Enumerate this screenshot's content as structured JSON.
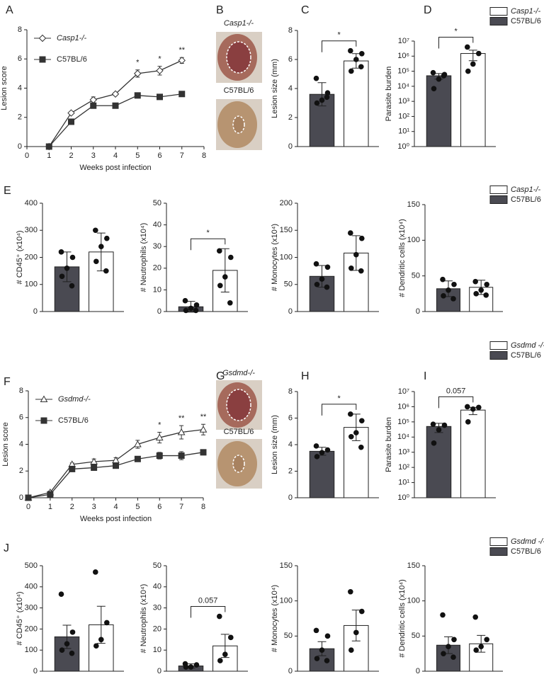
{
  "chart_data": [
    {
      "type": "line",
      "panel": "A",
      "xlabel": "Weeks post infection",
      "ylabel": "Lesion score",
      "x": [
        1,
        2,
        3,
        4,
        5,
        6,
        7
      ],
      "xlim": [
        0,
        8
      ],
      "xticks": [
        0,
        1,
        2,
        3,
        4,
        5,
        6,
        7,
        8
      ],
      "ylim": [
        0,
        8
      ],
      "yticks": [
        0,
        2,
        4,
        6,
        8
      ],
      "legend": "upper left",
      "stars": [
        null,
        null,
        null,
        null,
        "*",
        "*",
        "**"
      ],
      "series": [
        {
          "name": "Casp1-/-",
          "color": "#333333",
          "marker": "diamond",
          "filled": false,
          "values": [
            0,
            2.3,
            3.2,
            3.6,
            5.0,
            5.2,
            5.9
          ],
          "errors": [
            0,
            0.1,
            0.2,
            0.1,
            0.25,
            0.3,
            0.2
          ]
        },
        {
          "name": "C57BL/6",
          "color": "#333333",
          "marker": "square",
          "filled": true,
          "values": [
            0,
            1.7,
            2.8,
            2.8,
            3.5,
            3.4,
            3.6
          ],
          "errors": [
            0,
            0.05,
            0.05,
            0.05,
            0.05,
            0.05,
            0.05
          ]
        }
      ]
    },
    {
      "type": "image",
      "panel": "B",
      "labels": [
        "Casp1-/-",
        "C57BL/6"
      ]
    },
    {
      "type": "bar",
      "panel": "C",
      "ylabel": "Lesion size (mm)",
      "ylim": [
        0,
        8
      ],
      "yticks": [
        0,
        2,
        4,
        6,
        8
      ],
      "significance": "*",
      "series": [
        {
          "color": "#4a4a52",
          "value": 3.6,
          "error": 0.8,
          "points": [
            4.7,
            3.7,
            3.2,
            3.0,
            3.4
          ]
        },
        {
          "color": "#ffffff",
          "value": 5.9,
          "error": 0.5,
          "points": [
            6.6,
            6.4,
            6.0,
            5.2,
            5.5
          ]
        }
      ]
    },
    {
      "type": "bar",
      "panel": "D",
      "ylabel": "Parasite burden",
      "log_y": true,
      "ylim": [
        1,
        10000000
      ],
      "yticks": [
        {
          "value": 1,
          "label": "10⁰"
        },
        {
          "value": 10,
          "label": "10¹"
        },
        {
          "value": 100,
          "label": "10²"
        },
        {
          "value": 1000,
          "label": "10³"
        },
        {
          "value": 10000,
          "label": "10⁴"
        },
        {
          "value": 100000,
          "label": "10⁵"
        },
        {
          "value": 1000000,
          "label": "10⁶"
        },
        {
          "value": 10000000,
          "label": "10⁷"
        }
      ],
      "significance": "*",
      "legend": "upper right",
      "series": [
        {
          "name": "C57BL/6",
          "color": "#4a4a52",
          "value": 50000,
          "error": 20000,
          "points": [
            80000,
            60000,
            30000,
            7000,
            50000
          ]
        },
        {
          "name": "Casp1-/-",
          "color": "#ffffff",
          "value": 1500000,
          "error": 1000000,
          "points": [
            4000000,
            1500000,
            300000,
            100000
          ]
        }
      ]
    },
    {
      "type": "bar",
      "panel": "E",
      "ylabel": "# CD45⁺ (x10⁴)",
      "ylim": [
        0,
        400
      ],
      "yticks": [
        0,
        100,
        200,
        300,
        400
      ],
      "series": [
        {
          "color": "#4a4a52",
          "value": 165,
          "error": 55,
          "points": [
            220,
            200,
            160,
            130,
            95
          ]
        },
        {
          "color": "#ffffff",
          "value": 220,
          "error": 70,
          "points": [
            300,
            270,
            240,
            185,
            150
          ]
        }
      ]
    },
    {
      "type": "bar",
      "ylabel": "# Neutrophils (x10⁴)",
      "ylim": [
        0,
        50
      ],
      "yticks": [
        0,
        10,
        20,
        30,
        40,
        50
      ],
      "significance": "*",
      "series": [
        {
          "color": "#4a4a52",
          "value": 2.2,
          "error": 2.5,
          "points": [
            5,
            3,
            1.5,
            0.5,
            0.5
          ]
        },
        {
          "color": "#ffffff",
          "value": 19,
          "error": 10,
          "points": [
            28,
            25,
            16,
            12,
            4
          ]
        }
      ]
    },
    {
      "type": "bar",
      "ylabel": "# Monocytes (x10⁴)",
      "ylim": [
        0,
        200
      ],
      "yticks": [
        0,
        50,
        100,
        150,
        200
      ],
      "series": [
        {
          "color": "#4a4a52",
          "value": 65,
          "error": 20,
          "points": [
            88,
            82,
            60,
            50,
            45
          ]
        },
        {
          "color": "#ffffff",
          "value": 108,
          "error": 32,
          "points": [
            145,
            135,
            105,
            80,
            75
          ]
        }
      ]
    },
    {
      "type": "bar",
      "ylabel": "# Dendritic cells (x10⁴)",
      "ylim": [
        0,
        150
      ],
      "yticks": [
        0,
        50,
        100,
        150
      ],
      "legend": "upper right",
      "series": [
        {
          "name": "C57BL/6",
          "color": "#4a4a52",
          "value": 32,
          "error": 11,
          "points": [
            45,
            38,
            30,
            22,
            18
          ]
        },
        {
          "name": "Casp1-/-",
          "color": "#ffffff",
          "value": 34,
          "error": 10,
          "points": [
            42,
            38,
            30,
            25,
            23
          ]
        }
      ]
    },
    {
      "type": "line",
      "panel": "F",
      "xlabel": "Weeks post infection",
      "ylabel": "Lesion score",
      "x": [
        0,
        1,
        2,
        3,
        4,
        5,
        6,
        7,
        8
      ],
      "xlim": [
        0,
        8
      ],
      "xticks": [
        0,
        1,
        2,
        3,
        4,
        5,
        6,
        7,
        8
      ],
      "ylim": [
        0,
        8
      ],
      "yticks": [
        0,
        2,
        4,
        6,
        8
      ],
      "legend": "upper left",
      "stars": [
        null,
        null,
        null,
        null,
        null,
        null,
        "*",
        "**",
        "**"
      ],
      "series": [
        {
          "name": "Gsdmd-/-",
          "color": "#333333",
          "marker": "triangle",
          "filled": false,
          "values": [
            0,
            0.4,
            2.5,
            2.7,
            2.8,
            4.0,
            4.5,
            4.9,
            5.1
          ],
          "errors": [
            0,
            0.1,
            0.1,
            0.2,
            0.2,
            0.3,
            0.4,
            0.5,
            0.4
          ]
        },
        {
          "name": "C57BL/6",
          "color": "#333333",
          "marker": "square",
          "filled": true,
          "values": [
            0,
            0.25,
            2.15,
            2.25,
            2.4,
            2.9,
            3.15,
            3.15,
            3.4
          ],
          "errors": [
            0,
            0.05,
            0.1,
            0.1,
            0.15,
            0.2,
            0.25,
            0.3,
            0.2
          ]
        }
      ]
    },
    {
      "type": "image",
      "panel": "G",
      "labels": [
        "Gsdmd-/-",
        "C57BL/6"
      ]
    },
    {
      "type": "bar",
      "panel": "H",
      "ylabel": "Lesion size (mm)",
      "ylim": [
        0,
        8
      ],
      "yticks": [
        0,
        2,
        4,
        6,
        8
      ],
      "significance": "*",
      "series": [
        {
          "color": "#4a4a52",
          "value": 3.5,
          "error": 0.3,
          "points": [
            3.9,
            3.6,
            3.4,
            3.1
          ]
        },
        {
          "color": "#ffffff",
          "value": 5.3,
          "error": 1.0,
          "points": [
            6.3,
            5.8,
            4.9,
            4.6,
            3.8
          ]
        }
      ]
    },
    {
      "type": "bar",
      "panel": "I",
      "ylabel": "Parasite burden",
      "log_y": true,
      "ylim": [
        1,
        10000000
      ],
      "yticks": [
        {
          "value": 1,
          "label": "10⁰"
        },
        {
          "value": 10,
          "label": "10¹"
        },
        {
          "value": 100,
          "label": "10²"
        },
        {
          "value": 1000,
          "label": "10³"
        },
        {
          "value": 10000,
          "label": "10⁴"
        },
        {
          "value": 100000,
          "label": "10⁵"
        },
        {
          "value": 1000000,
          "label": "10⁶"
        },
        {
          "value": 10000000,
          "label": "10⁷"
        }
      ],
      "significance": "0.057",
      "legend": "upper right",
      "series": [
        {
          "name": "C57BL/6",
          "color": "#4a4a52",
          "value": 50000,
          "error": 30000,
          "points": [
            70000,
            60000,
            30000,
            4000
          ]
        },
        {
          "name": "Gsdmd -/-",
          "color": "#ffffff",
          "value": 600000,
          "error": 300000,
          "points": [
            1000000,
            900000,
            700000,
            100000
          ]
        }
      ]
    },
    {
      "type": "bar",
      "panel": "J",
      "ylabel": "# CD45⁺ (x10⁴)",
      "ylim": [
        0,
        500
      ],
      "yticks": [
        0,
        100,
        200,
        300,
        400,
        500
      ],
      "series": [
        {
          "color": "#4a4a52",
          "value": 163,
          "error": 55,
          "points": [
            365,
            185,
            130,
            100,
            85
          ]
        },
        {
          "color": "#ffffff",
          "value": 220,
          "error": 88,
          "points": [
            470,
            230,
            150,
            120
          ]
        }
      ]
    },
    {
      "type": "bar",
      "ylabel": "# Neutrophils (x10⁴)",
      "ylim": [
        0,
        50
      ],
      "yticks": [
        0,
        10,
        20,
        30,
        40,
        50
      ],
      "significance": "0.057",
      "series": [
        {
          "color": "#4a4a52",
          "value": 2.5,
          "error": 1,
          "points": [
            3.5,
            3,
            2,
            2
          ]
        },
        {
          "color": "#ffffff",
          "value": 12,
          "error": 5.5,
          "points": [
            26,
            16,
            8,
            5
          ]
        }
      ]
    },
    {
      "type": "bar",
      "ylabel": "# Monocytes (x10⁴)",
      "ylim": [
        0,
        150
      ],
      "yticks": [
        0,
        50,
        100,
        150
      ],
      "series": [
        {
          "color": "#4a4a52",
          "value": 32,
          "error": 10,
          "points": [
            58,
            50,
            30,
            18,
            15
          ]
        },
        {
          "color": "#ffffff",
          "value": 65,
          "error": 22,
          "points": [
            113,
            85,
            55,
            30
          ]
        }
      ]
    },
    {
      "type": "bar",
      "ylabel": "# Dendritic cells (x10⁴)",
      "ylim": [
        0,
        150
      ],
      "yticks": [
        0,
        50,
        100,
        150
      ],
      "legend": "upper right",
      "series": [
        {
          "name": "C57BL/6",
          "color": "#4a4a52",
          "value": 37,
          "error": 12,
          "points": [
            80,
            45,
            35,
            25,
            20
          ]
        },
        {
          "name": "Gsdmd -/-",
          "color": "#ffffff",
          "value": 39,
          "error": 12,
          "points": [
            77,
            45,
            35,
            30
          ]
        }
      ]
    }
  ]
}
